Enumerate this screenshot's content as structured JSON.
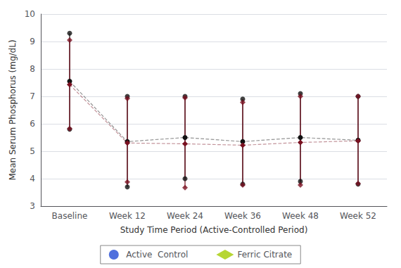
{
  "chart_data": {
    "type": "line",
    "categories": [
      "Baseline",
      "Week 12",
      "Week 24",
      "Week 36",
      "Week 48",
      "Week 52"
    ],
    "series": [
      {
        "name": "Active  Control",
        "color": "#111111",
        "marker": "circle",
        "line_style": "dashed",
        "values": [
          7.55,
          5.35,
          5.5,
          5.35,
          5.5,
          5.4
        ],
        "upper": [
          9.3,
          7.0,
          7.0,
          6.9,
          7.1,
          7.0
        ],
        "lower": [
          5.8,
          3.7,
          4.0,
          3.8,
          3.9,
          3.8
        ]
      },
      {
        "name": "Ferric Citrate",
        "color": "#7a1020",
        "marker": "diamond",
        "line_style": "dashed",
        "values": [
          7.43,
          5.3,
          5.27,
          5.22,
          5.32,
          5.38
        ],
        "upper": [
          9.05,
          6.92,
          6.95,
          6.78,
          7.0,
          7.0
        ],
        "lower": [
          5.82,
          3.88,
          3.67,
          3.77,
          3.77,
          3.82
        ]
      }
    ],
    "ylim": [
      3,
      10
    ],
    "yticks": [
      3,
      4,
      5,
      6,
      7,
      8,
      9,
      10
    ],
    "xlabel": "Study Time Period (Active-Controlled Period)",
    "ylabel": "Mean Serum Phosphorus (mg/dL)",
    "grid": true,
    "legend": "bottom"
  }
}
